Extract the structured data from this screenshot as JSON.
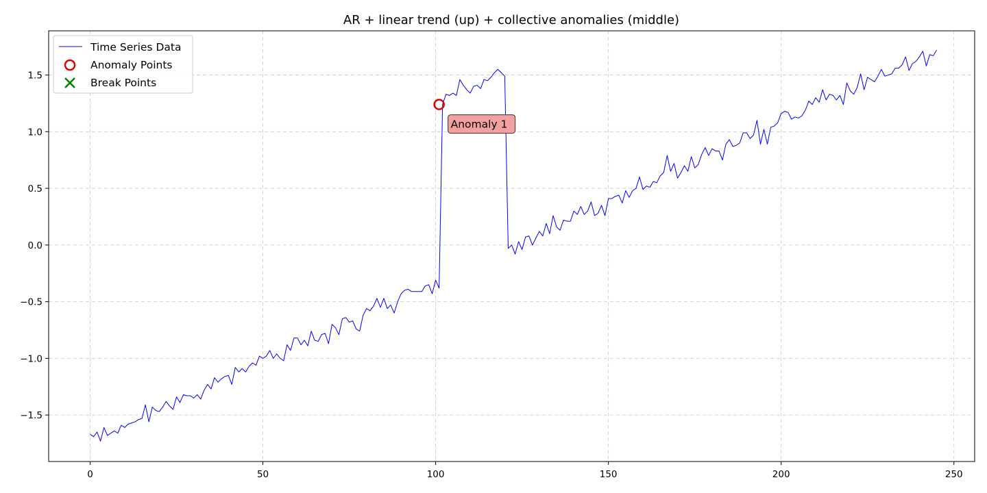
{
  "chart_data": {
    "type": "line",
    "title": "AR + linear trend (up) + collective anomalies (middle)",
    "xlabel": "",
    "ylabel": "",
    "xlim": [
      -12,
      256
    ],
    "ylim": [
      -1.91,
      1.89
    ],
    "xticks": [
      0,
      50,
      100,
      150,
      200,
      250
    ],
    "yticks": [
      -1.5,
      -1.0,
      -0.5,
      0.0,
      0.5,
      1.0,
      1.5
    ],
    "xtick_labels": [
      "0",
      "50",
      "100",
      "150",
      "200",
      "250"
    ],
    "ytick_labels": [
      "−1.5",
      "−1.0",
      "−0.5",
      "0.0",
      "0.5",
      "1.0",
      "1.5"
    ],
    "grid": true,
    "legend": {
      "placement": "upper-left",
      "entries": [
        {
          "label": "Time Series Data",
          "marker": "line",
          "color": "#0000ff"
        },
        {
          "label": "Anomaly Points",
          "marker": "circle",
          "color": "#e00000"
        },
        {
          "label": "Break Points",
          "marker": "x",
          "color": "#008000"
        }
      ]
    },
    "series": [
      {
        "name": "Time Series Data",
        "color": "#0000ff",
        "x_start": 0,
        "values": [
          -1.67,
          -1.69,
          -1.65,
          -1.73,
          -1.61,
          -1.68,
          -1.66,
          -1.64,
          -1.66,
          -1.59,
          -1.61,
          -1.58,
          -1.57,
          -1.56,
          -1.54,
          -1.53,
          -1.41,
          -1.56,
          -1.43,
          -1.46,
          -1.47,
          -1.43,
          -1.38,
          -1.42,
          -1.45,
          -1.34,
          -1.39,
          -1.32,
          -1.33,
          -1.33,
          -1.35,
          -1.32,
          -1.36,
          -1.28,
          -1.23,
          -1.27,
          -1.17,
          -1.21,
          -1.18,
          -1.16,
          -1.15,
          -1.23,
          -1.08,
          -1.12,
          -1.09,
          -1.12,
          -1.07,
          -1.04,
          -1.06,
          -0.98,
          -1.0,
          -0.98,
          -0.93,
          -1.0,
          -0.96,
          -1.0,
          -1.02,
          -0.88,
          -0.93,
          -0.82,
          -0.82,
          -0.88,
          -0.84,
          -0.89,
          -0.76,
          -0.84,
          -0.85,
          -0.79,
          -0.78,
          -0.87,
          -0.7,
          -0.73,
          -0.79,
          -0.65,
          -0.64,
          -0.68,
          -0.67,
          -0.74,
          -0.76,
          -0.62,
          -0.56,
          -0.58,
          -0.54,
          -0.47,
          -0.55,
          -0.47,
          -0.56,
          -0.53,
          -0.6,
          -0.5,
          -0.43,
          -0.4,
          -0.39,
          -0.41,
          -0.41,
          -0.41,
          -0.41,
          -0.36,
          -0.35,
          -0.43,
          -0.31,
          -0.38,
          1.24,
          1.33,
          1.32,
          1.34,
          1.32,
          1.46,
          1.41,
          1.37,
          1.34,
          1.4,
          1.41,
          1.38,
          1.46,
          1.45,
          1.48,
          1.52,
          1.55,
          1.52,
          1.49,
          -0.03,
          0.0,
          -0.08,
          0.03,
          -0.04,
          0.07,
          0.08,
          0.0,
          0.06,
          0.12,
          0.08,
          0.19,
          0.1,
          0.26,
          0.16,
          0.13,
          0.22,
          0.21,
          0.21,
          0.3,
          0.27,
          0.34,
          0.27,
          0.3,
          0.38,
          0.26,
          0.28,
          0.35,
          0.26,
          0.41,
          0.41,
          0.43,
          0.44,
          0.37,
          0.48,
          0.42,
          0.48,
          0.5,
          0.6,
          0.49,
          0.52,
          0.51,
          0.56,
          0.55,
          0.61,
          0.64,
          0.79,
          0.65,
          0.72,
          0.59,
          0.64,
          0.7,
          0.65,
          0.78,
          0.68,
          0.71,
          0.8,
          0.86,
          0.79,
          0.85,
          0.83,
          0.83,
          0.75,
          0.89,
          0.93,
          0.87,
          0.88,
          0.9,
          0.99,
          0.99,
          0.94,
          0.97,
          1.1,
          0.89,
          1.02,
          0.89,
          1.04,
          1.05,
          1.08,
          1.16,
          1.18,
          1.17,
          1.11,
          1.13,
          1.12,
          1.14,
          1.19,
          1.27,
          1.24,
          1.3,
          1.26,
          1.37,
          1.28,
          1.33,
          1.32,
          1.28,
          1.32,
          1.24,
          1.43,
          1.36,
          1.33,
          1.39,
          1.51,
          1.37,
          1.48,
          1.46,
          1.44,
          1.49,
          1.55,
          1.49,
          1.5,
          1.51,
          1.56,
          1.56,
          1.59,
          1.66,
          1.54,
          1.6,
          1.62,
          1.66,
          1.71,
          1.58,
          1.68,
          1.67,
          1.72
        ]
      }
    ],
    "anomaly_points": [
      {
        "x": 101,
        "y": 1.24,
        "label": "Anomaly 1"
      }
    ],
    "break_points": []
  }
}
